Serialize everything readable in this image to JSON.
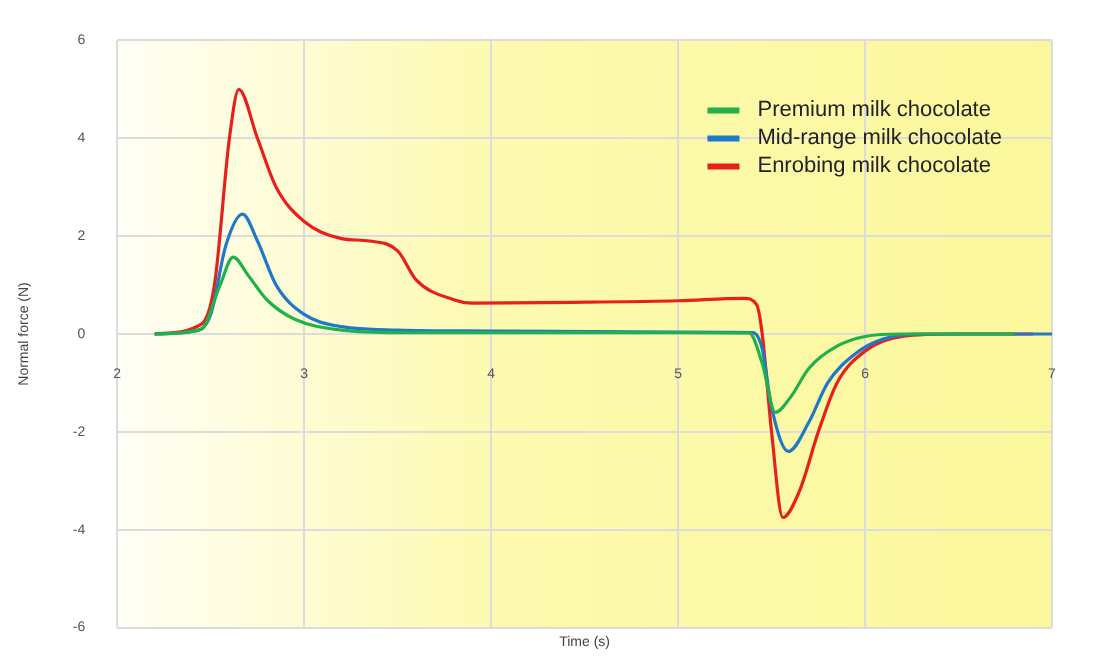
{
  "chart_data": {
    "type": "line",
    "xlabel": "Time (s)",
    "ylabel": "Normal force (N)",
    "xlim": [
      2,
      7
    ],
    "xticks": [
      2,
      3,
      4,
      5,
      6,
      7
    ],
    "ylim": [
      -6,
      6
    ],
    "yticks": [
      -6,
      -4,
      -2,
      0,
      2,
      4,
      6
    ],
    "grid": true,
    "legend": "top right",
    "marker": "none",
    "line_style": "solid",
    "series": [
      {
        "name": "Premium milk chocolate",
        "color": "#21b14a",
        "x": [
          2.2,
          2.45,
          2.55,
          2.62,
          2.7,
          2.8,
          2.95,
          3.2,
          3.5,
          5.0,
          5.38,
          5.45,
          5.52,
          5.6,
          5.7,
          5.85,
          6.0,
          6.2,
          6.8
        ],
        "values": [
          0,
          0.1,
          1.0,
          1.57,
          1.2,
          0.7,
          0.3,
          0.08,
          0.03,
          0.03,
          0.02,
          -0.6,
          -1.6,
          -1.3,
          -0.7,
          -0.25,
          -0.05,
          0,
          0
        ]
      },
      {
        "name": "Mid-range milk chocolate",
        "color": "#1f78c8",
        "x": [
          2.2,
          2.4,
          2.5,
          2.58,
          2.67,
          2.75,
          2.85,
          3.0,
          3.2,
          3.5,
          4.0,
          5.0,
          5.4,
          5.45,
          5.5,
          5.59,
          5.7,
          5.8,
          5.95,
          6.1,
          6.3,
          7.0
        ],
        "values": [
          0,
          0.05,
          0.4,
          1.8,
          2.45,
          1.9,
          1.0,
          0.4,
          0.15,
          0.08,
          0.06,
          0.04,
          0.03,
          -0.3,
          -1.5,
          -2.4,
          -1.8,
          -1.0,
          -0.4,
          -0.1,
          0,
          0
        ]
      },
      {
        "name": "Enrobing milk chocolate",
        "color": "#e8201c",
        "x": [
          2.2,
          2.45,
          2.52,
          2.6,
          2.65,
          2.75,
          2.85,
          3.0,
          3.2,
          3.35,
          3.5,
          3.6,
          3.8,
          3.9,
          4.5,
          5.0,
          5.35,
          5.42,
          5.45,
          5.5,
          5.56,
          5.65,
          5.75,
          5.85,
          6.0,
          6.2,
          6.5,
          6.9
        ],
        "values": [
          0,
          0.2,
          1.0,
          4.0,
          5.0,
          4.0,
          3.0,
          2.3,
          1.95,
          1.9,
          1.7,
          1.1,
          0.7,
          0.63,
          0.65,
          0.68,
          0.73,
          0.6,
          0,
          -2,
          -3.75,
          -3.2,
          -2,
          -1,
          -0.35,
          -0.05,
          0,
          0
        ]
      }
    ]
  }
}
